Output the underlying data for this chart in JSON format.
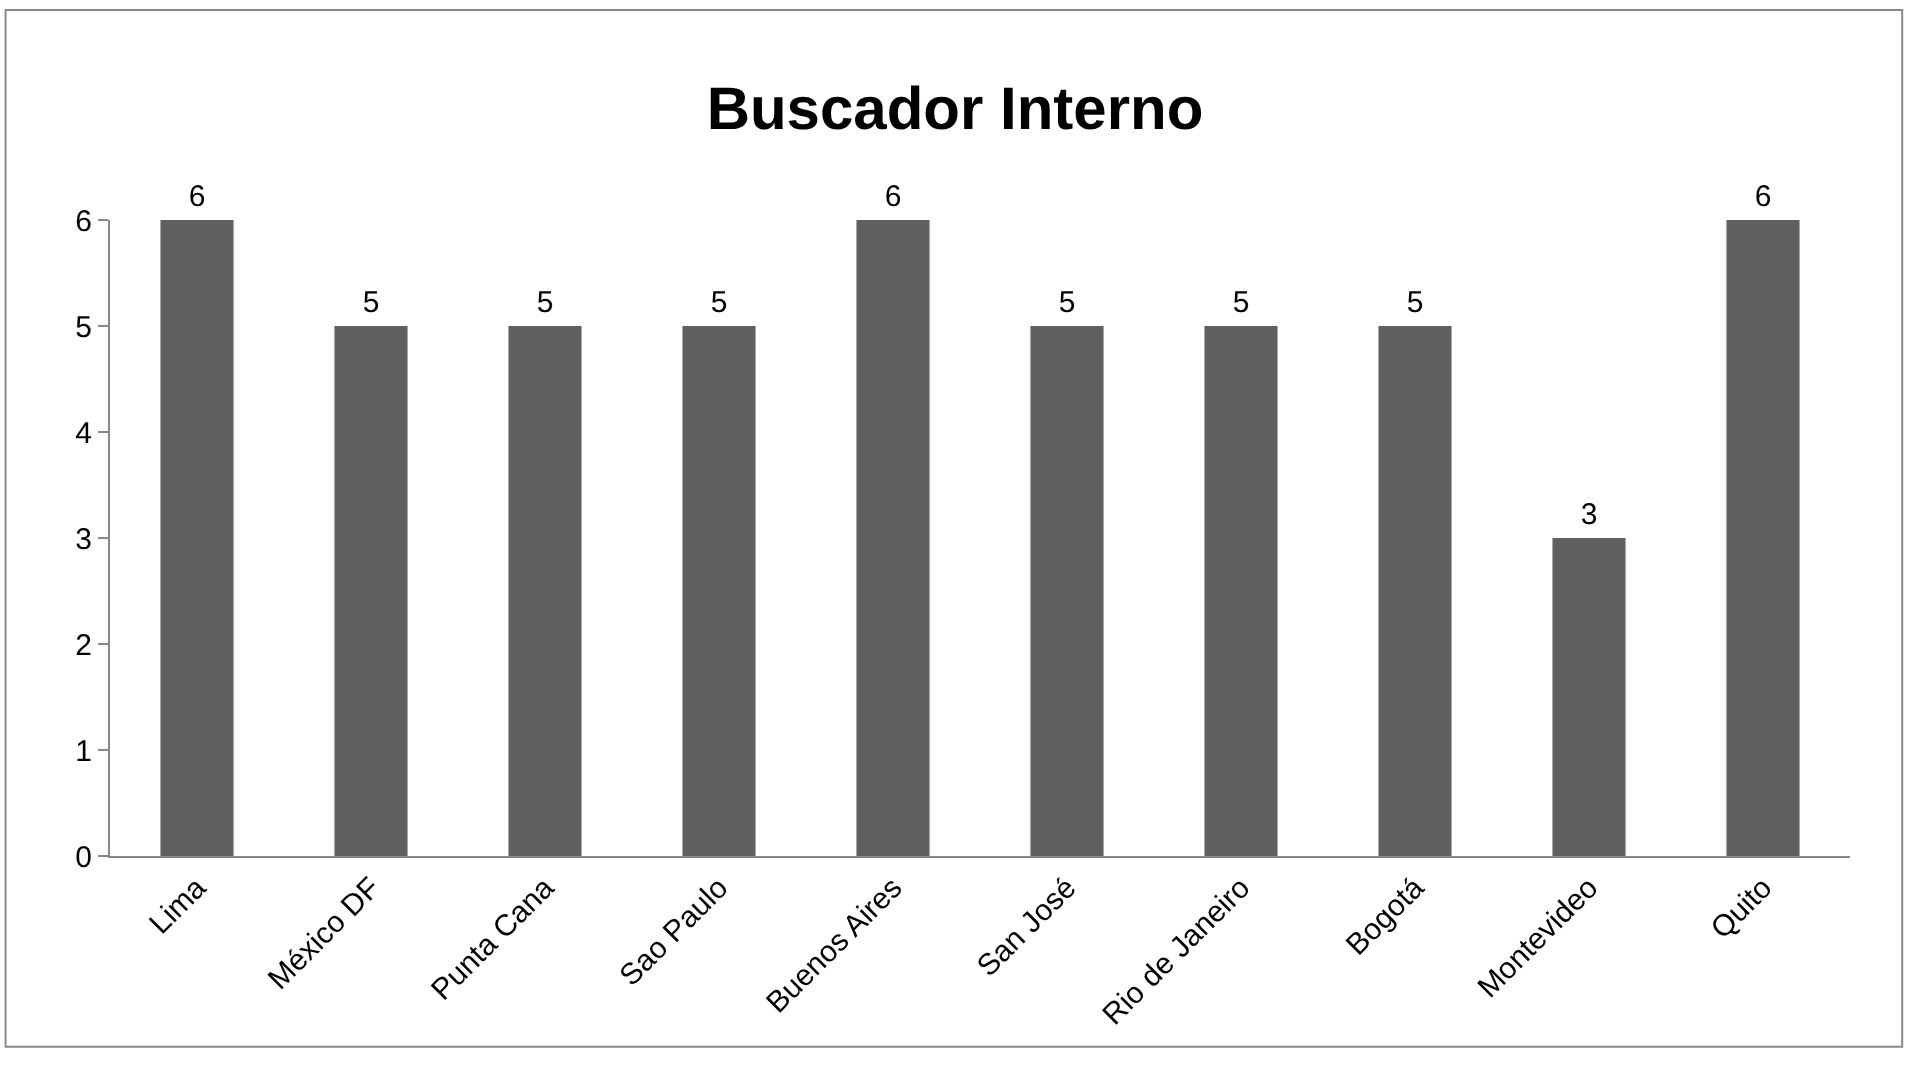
{
  "chart_data": {
    "type": "bar",
    "title": "Buscador Interno",
    "categories": [
      "Lima",
      "México DF",
      "Punta Cana",
      "Sao Paulo",
      "Buenos Aires",
      "San José",
      "Rio de Janeiro",
      "Bogotá",
      "Montevideo",
      "Quito"
    ],
    "values": [
      6,
      5,
      5,
      5,
      6,
      5,
      5,
      5,
      3,
      6
    ],
    "color": "#606060",
    "ylim": [
      0,
      6
    ],
    "yticks": [
      0,
      1,
      2,
      3,
      4,
      5,
      6
    ],
    "data_labels": true
  }
}
